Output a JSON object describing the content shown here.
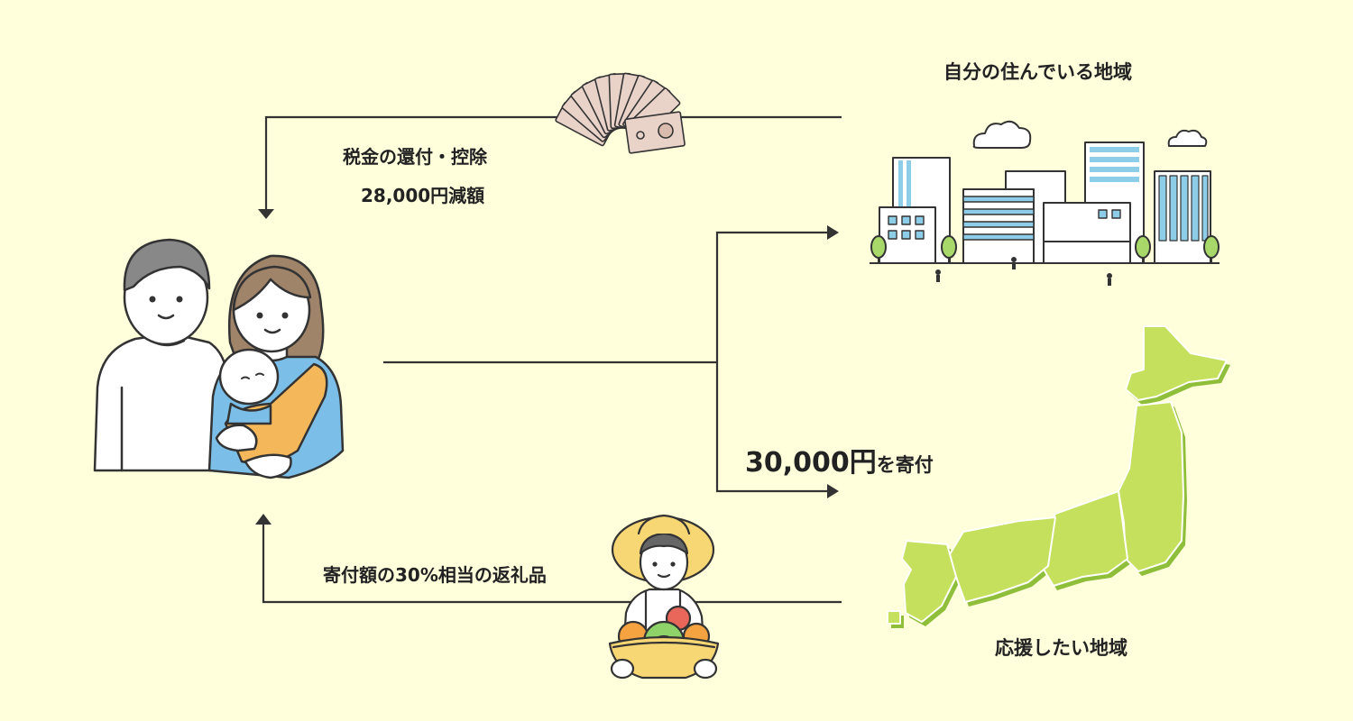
{
  "labels": {
    "home_region": "自分の住んでいる地域",
    "refund_line1": "税金の還付・控除",
    "refund_line2": "28,000円減額",
    "donate_amount": "30,000円",
    "donate_suffix": "を寄付",
    "gift": "寄付額の30%相当の返礼品",
    "support_region": "応援したい地域"
  },
  "colors": {
    "background": "#ffffdc",
    "line": "#333333",
    "map_green": "#c5e05c",
    "map_shadow": "#8fbf3a",
    "building_blue": "#8ecde8",
    "hat_yellow": "#f7d774",
    "sling_orange": "#f4b75a",
    "shirt_blue": "#7bbfe8",
    "banknote": "#e9d3c9"
  },
  "icons": {
    "family": "family-with-baby-icon",
    "money": "banknotes-fan-icon",
    "city": "city-buildings-icon",
    "japan_map": "japan-map-icon",
    "farmer": "farmer-with-vegetables-icon"
  }
}
